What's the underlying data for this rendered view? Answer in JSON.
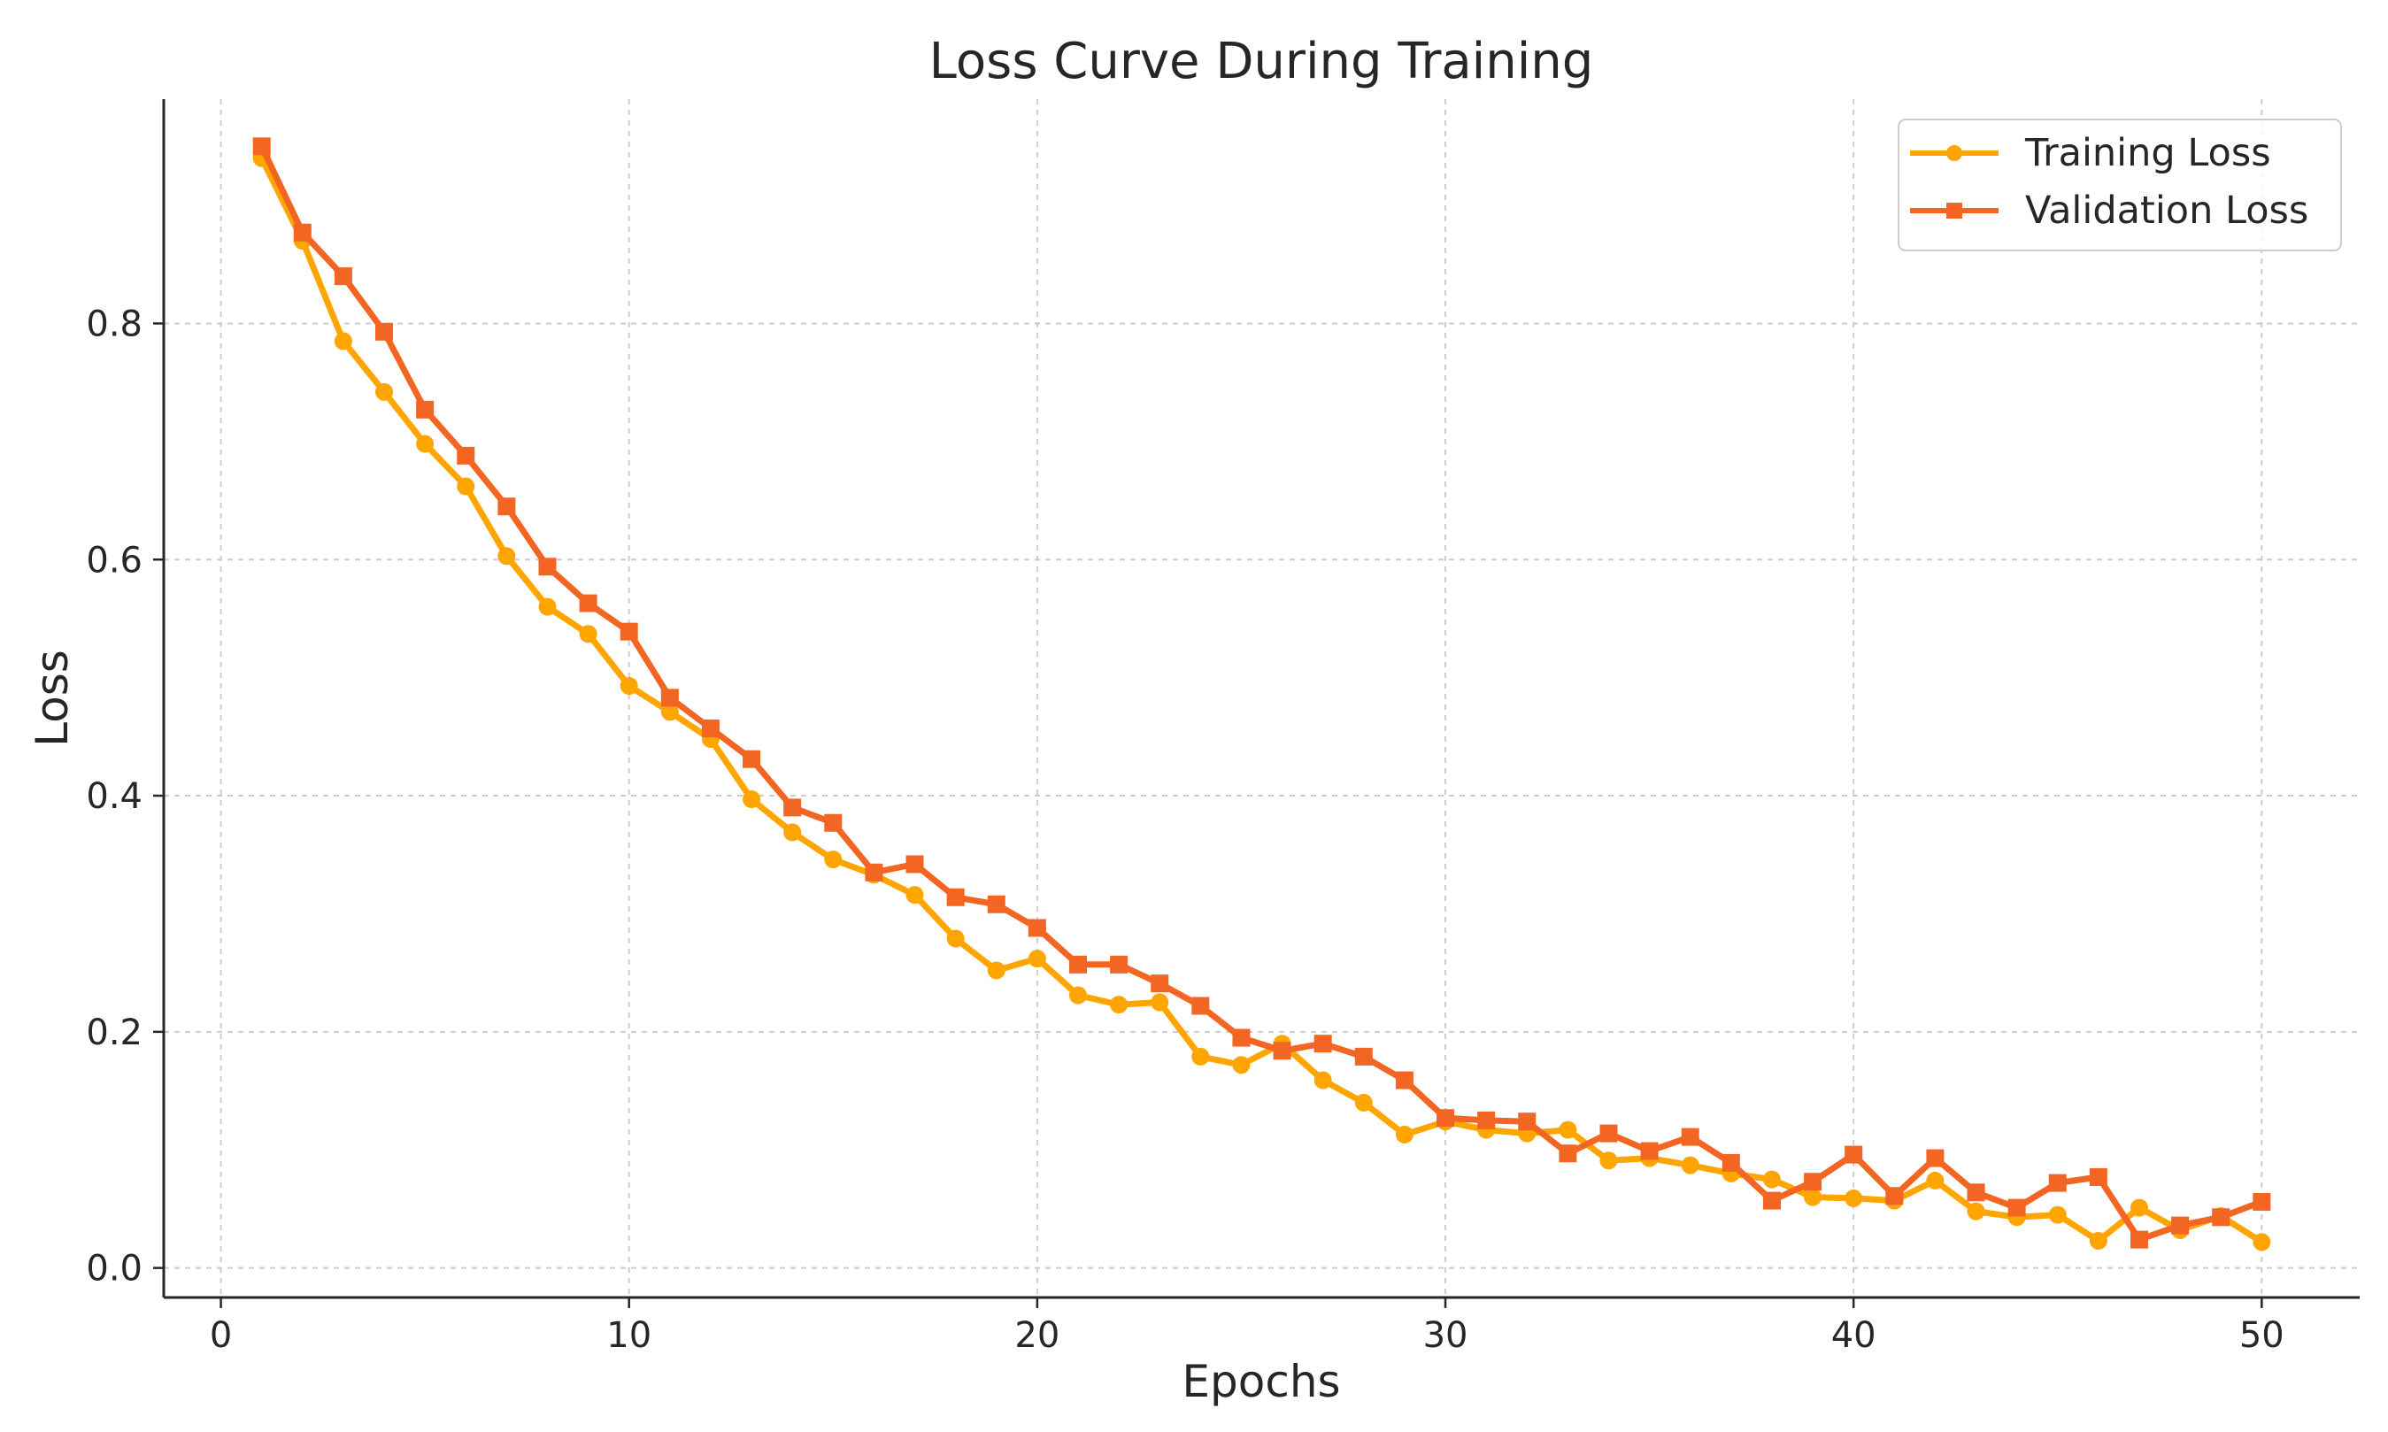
{
  "chart_data": {
    "type": "line",
    "title": "Loss Curve During Training",
    "xlabel": "Epochs",
    "ylabel": "Loss",
    "xlim": [
      -1.4,
      52.4
    ],
    "ylim": [
      -0.025,
      0.99
    ],
    "xticks": [
      0,
      10,
      20,
      30,
      40,
      50
    ],
    "xtick_labels": [
      "0",
      "10",
      "20",
      "30",
      "40",
      "50"
    ],
    "yticks": [
      0.0,
      0.2,
      0.4,
      0.6,
      0.8
    ],
    "ytick_labels": [
      "0.0",
      "0.2",
      "0.4",
      "0.6",
      "0.8"
    ],
    "grid": true,
    "legend_position": "top-right",
    "x": [
      1,
      2,
      3,
      4,
      5,
      6,
      7,
      8,
      9,
      10,
      11,
      12,
      13,
      14,
      15,
      16,
      17,
      18,
      19,
      20,
      21,
      22,
      23,
      24,
      25,
      26,
      27,
      28,
      29,
      30,
      31,
      32,
      33,
      34,
      35,
      36,
      37,
      38,
      39,
      40,
      41,
      42,
      43,
      44,
      45,
      46,
      47,
      48,
      49,
      50
    ],
    "series": [
      {
        "name": "Training Loss",
        "color": "#ffa500",
        "marker": "circle",
        "values": [
          0.94,
          0.87,
          0.785,
          0.742,
          0.698,
          0.662,
          0.603,
          0.56,
          0.537,
          0.493,
          0.471,
          0.448,
          0.397,
          0.369,
          0.346,
          0.333,
          0.316,
          0.279,
          0.252,
          0.262,
          0.231,
          0.223,
          0.225,
          0.179,
          0.172,
          0.19,
          0.159,
          0.14,
          0.113,
          0.124,
          0.117,
          0.114,
          0.117,
          0.091,
          0.093,
          0.087,
          0.08,
          0.075,
          0.06,
          0.059,
          0.057,
          0.074,
          0.048,
          0.043,
          0.045,
          0.023,
          0.051,
          0.032,
          0.044,
          0.022
        ]
      },
      {
        "name": "Validation Loss",
        "color": "#f26522",
        "marker": "square",
        "values": [
          0.95,
          0.877,
          0.84,
          0.793,
          0.727,
          0.688,
          0.645,
          0.594,
          0.563,
          0.539,
          0.483,
          0.457,
          0.431,
          0.39,
          0.377,
          0.335,
          0.342,
          0.314,
          0.308,
          0.288,
          0.257,
          0.257,
          0.241,
          0.222,
          0.195,
          0.184,
          0.19,
          0.179,
          0.159,
          0.127,
          0.125,
          0.124,
          0.097,
          0.114,
          0.099,
          0.111,
          0.089,
          0.057,
          0.073,
          0.096,
          0.061,
          0.093,
          0.064,
          0.051,
          0.072,
          0.077,
          0.024,
          0.036,
          0.043,
          0.056
        ]
      }
    ]
  }
}
